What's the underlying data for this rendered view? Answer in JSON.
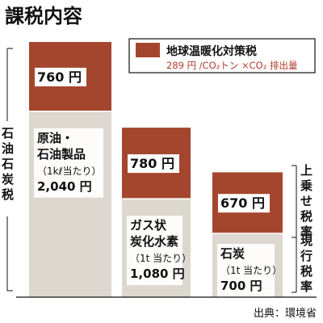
{
  "chart_data": {
    "type": "bar",
    "stacked": true,
    "title": "課税内容",
    "unit": "円",
    "categories": [
      {
        "name": "石油製品",
        "lines": [
          "原油・",
          "石油製品",
          "（1kℓ当たり）"
        ],
        "total_label": "2,040 円"
      },
      {
        "name": "ガス状炭化水素",
        "lines": [
          "ガス状",
          "炭化水素",
          "（1t 当たり）"
        ],
        "total_label": "1,080 円"
      },
      {
        "name": "石炭",
        "lines": [
          "石炭",
          "（1t 当たり）"
        ],
        "total_label": "700 円"
      }
    ],
    "series": [
      {
        "name": "現行税率",
        "values": [
          2040,
          1080,
          700
        ]
      },
      {
        "name": "地球温暖化対策税",
        "values": [
          760,
          780,
          670
        ]
      }
    ],
    "top_labels": [
      "760 円",
      "780 円",
      "670 円"
    ],
    "legend": {
      "title": "地球温暖化対策税",
      "subtitle": "289 円 /CO₂トン ×CO₂ 排出量",
      "placement": "top-right"
    },
    "side_labels": {
      "left": "石油石炭税",
      "right_top": "上乗せ税率",
      "right_bottom": "現行税率"
    },
    "source": "出典：環境省",
    "ylim": [
      0,
      2800
    ],
    "colors": {
      "upper": "#a4462e",
      "lower": "#dcd8cf",
      "text": "#111111",
      "subtitle": "#b23a2a"
    }
  }
}
